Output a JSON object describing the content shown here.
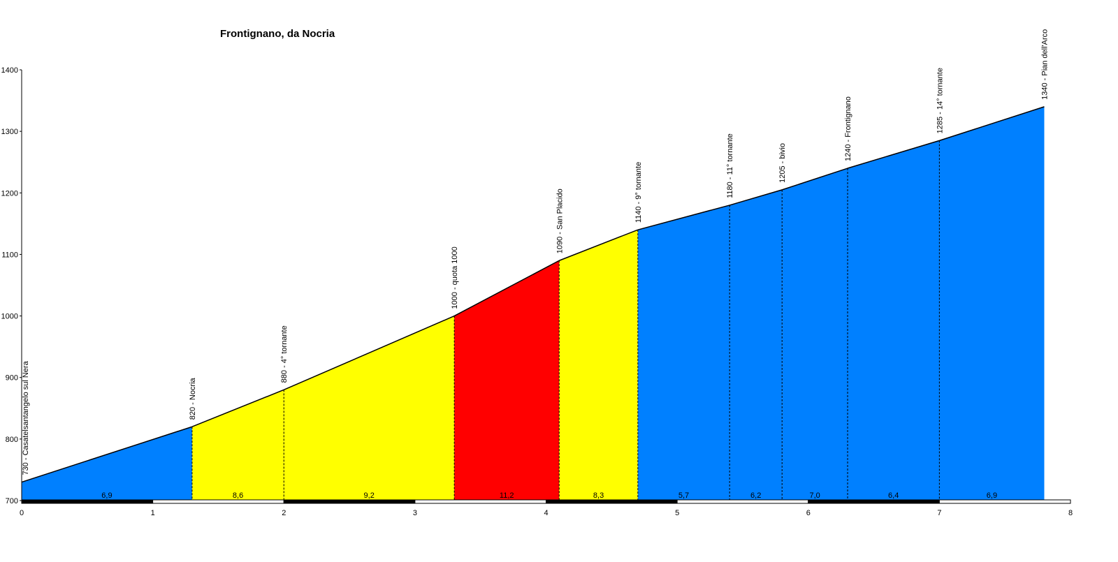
{
  "chart_data": {
    "type": "area",
    "title": "Frontignano, da Nocria",
    "xlabel": "",
    "ylabel": "",
    "xlim": [
      0,
      8
    ],
    "ylim": [
      700,
      1400
    ],
    "x_ticks": [
      "0",
      "1",
      "2",
      "3",
      "4",
      "5",
      "6",
      "7",
      "8"
    ],
    "y_ticks": [
      "700",
      "800",
      "900",
      "1000",
      "1100",
      "1200",
      "1300",
      "1400"
    ],
    "points": [
      {
        "km": 0.0,
        "alt": 730,
        "label": "730 - Casatelsantangelo sul Nera"
      },
      {
        "km": 1.3,
        "alt": 820,
        "label": "820 - Nocria"
      },
      {
        "km": 2.0,
        "alt": 880,
        "label": "880 - 4° tornante"
      },
      {
        "km": 3.3,
        "alt": 1000,
        "label": "1000 - quota 1000"
      },
      {
        "km": 4.1,
        "alt": 1090,
        "label": "1090 - San Placido"
      },
      {
        "km": 4.7,
        "alt": 1140,
        "label": "1140 - 9° tornante"
      },
      {
        "km": 5.4,
        "alt": 1180,
        "label": "1180 - 11° tornante"
      },
      {
        "km": 5.8,
        "alt": 1205,
        "label": "1205 - bivio"
      },
      {
        "km": 6.3,
        "alt": 1240,
        "label": "1240 - Frontignano"
      },
      {
        "km": 7.0,
        "alt": 1285,
        "label": "1285 - 14° tornante"
      },
      {
        "km": 7.8,
        "alt": 1340,
        "label": "1340 - Pian dell'Arco"
      }
    ],
    "segments": [
      {
        "gradient": "6,9",
        "color": "#0080ff"
      },
      {
        "gradient": "8,6",
        "color": "#ffff00"
      },
      {
        "gradient": "9,2",
        "color": "#ffff00"
      },
      {
        "gradient": "11,2",
        "color": "#ff0000"
      },
      {
        "gradient": "8,3",
        "color": "#ffff00"
      },
      {
        "gradient": "5,7",
        "color": "#0080ff"
      },
      {
        "gradient": "6,2",
        "color": "#0080ff"
      },
      {
        "gradient": "7,0",
        "color": "#0080ff"
      },
      {
        "gradient": "6,4",
        "color": "#0080ff"
      },
      {
        "gradient": "6,9",
        "color": "#0080ff"
      }
    ],
    "grid": false,
    "legend": "none"
  }
}
